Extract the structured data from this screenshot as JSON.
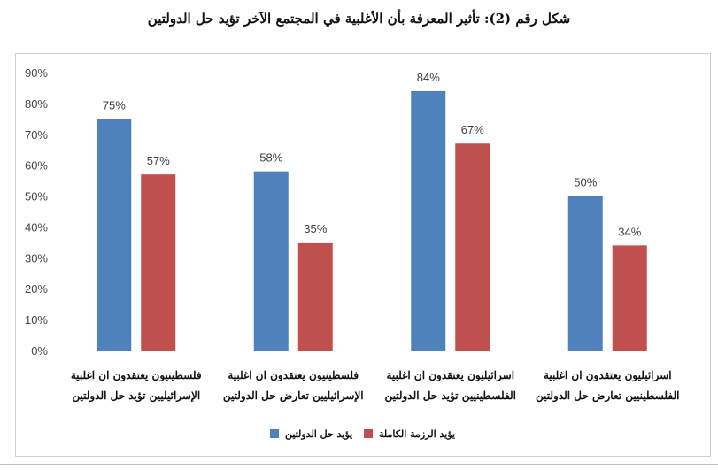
{
  "title": "شكل رقم (2): تأثير المعرفة بأن الأغلبية في المجتمع الآخر تؤيد حل الدولتين",
  "chart_data": {
    "type": "bar",
    "ylim": [
      0,
      90
    ],
    "yticks": [
      "0%",
      "10%",
      "20%",
      "30%",
      "40%",
      "50%",
      "60%",
      "70%",
      "80%",
      "90%"
    ],
    "grid": false,
    "legend": "bottom",
    "categories": [
      [
        "فلسطينيون يعتقدون ان اغلبية",
        "الإسرائيليين تؤيد حل الدولتين"
      ],
      [
        "فلسطينيون يعتقدون ان اغلبية",
        "الإسرائيليين تعارض حل الدولتين"
      ],
      [
        "اسرائيليون يعتقدون ان اغلبية",
        "الفلسطينيين تؤيد حل الدولتين"
      ],
      [
        "اسرائيليون يعتقدون ان اغلبية",
        "الفلسطينيين تعارض حل الدولتين"
      ]
    ],
    "series": [
      {
        "name": "يؤيد حل الدولتين",
        "color": "#4f81bd",
        "values": [
          75,
          58,
          84,
          50
        ],
        "labels": [
          "75%",
          "58%",
          "84%",
          "50%"
        ]
      },
      {
        "name": "يؤيد الرزمة الكاملة",
        "color": "#c0504d",
        "values": [
          57,
          35,
          67,
          34
        ],
        "labels": [
          "57%",
          "35%",
          "67%",
          "34%"
        ]
      }
    ]
  }
}
